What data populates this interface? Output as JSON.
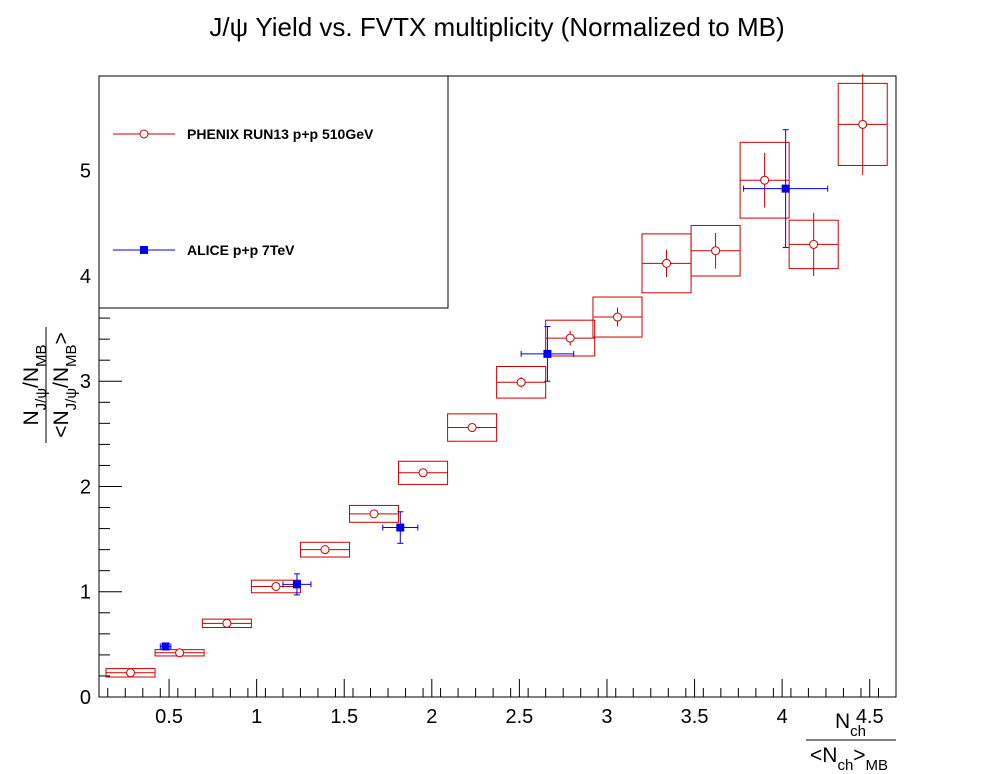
{
  "chart_data": {
    "type": "scatter",
    "title": "J/ψ Yield vs. FVTX multiplicity (Normalized to MB)",
    "x_axis": {
      "ticks": [
        0.5,
        1,
        1.5,
        2,
        2.5,
        3,
        3.5,
        4,
        4.5
      ],
      "tick_labels": [
        "0.5",
        "1",
        "1.5",
        "2",
        "2.5",
        "3",
        "3.5",
        "4",
        "4.5"
      ],
      "range": [
        0.1,
        4.65
      ],
      "label_num": "N",
      "label_num_sub": "ch",
      "label_den": "<N",
      "label_den_sub": "ch",
      "label_den_close": ">",
      "label_den_sub2": "MB"
    },
    "y_axis": {
      "ticks": [
        0,
        1,
        2,
        3,
        4,
        5
      ],
      "tick_labels": [
        "0",
        "1",
        "2",
        "3",
        "4",
        "5"
      ],
      "range": [
        0,
        5.9
      ],
      "label_num": "N",
      "label_num_sub": "J/ψ",
      "label_num_mid": "/N",
      "label_num_sub2": "MB",
      "label_den": "<N",
      "label_den_sub": "J/ψ",
      "label_den_mid": "/N",
      "label_den_sub2": "MB",
      "label_den_close": ">"
    },
    "legend": {
      "placement": "top-left",
      "entries": [
        {
          "label": "PHENIX RUN13 p+p 510GeV",
          "color": "#cc0000",
          "marker": "open-circle"
        },
        {
          "label": "ALICE p+p 7TeV",
          "color": "#0000ee",
          "marker": "filled-square"
        }
      ]
    },
    "series": [
      {
        "name": "PHENIX RUN13 p+p 510GeV",
        "color": "#cc0000",
        "marker": "open-circle",
        "points": [
          {
            "x": 0.28,
            "y": 0.23,
            "ex": 0.14,
            "ey": 0.02,
            "sx": 0.14,
            "sy": 0.04
          },
          {
            "x": 0.56,
            "y": 0.42,
            "ex": 0.14,
            "ey": 0.02,
            "sx": 0.14,
            "sy": 0.03
          },
          {
            "x": 0.83,
            "y": 0.7,
            "ex": 0.14,
            "ey": 0.02,
            "sx": 0.14,
            "sy": 0.04
          },
          {
            "x": 1.11,
            "y": 1.05,
            "ex": 0.14,
            "ey": 0.02,
            "sx": 0.14,
            "sy": 0.06
          },
          {
            "x": 1.39,
            "y": 1.4,
            "ex": 0.14,
            "ey": 0.02,
            "sx": 0.14,
            "sy": 0.07
          },
          {
            "x": 1.67,
            "y": 1.74,
            "ex": 0.14,
            "ey": 0.02,
            "sx": 0.14,
            "sy": 0.08
          },
          {
            "x": 1.95,
            "y": 2.13,
            "ex": 0.14,
            "ey": 0.02,
            "sx": 0.14,
            "sy": 0.11
          },
          {
            "x": 2.23,
            "y": 2.56,
            "ex": 0.14,
            "ey": 0.03,
            "sx": 0.14,
            "sy": 0.13
          },
          {
            "x": 2.51,
            "y": 2.99,
            "ex": 0.14,
            "ey": 0.05,
            "sx": 0.14,
            "sy": 0.15
          },
          {
            "x": 2.79,
            "y": 3.41,
            "ex": 0.14,
            "ey": 0.07,
            "sx": 0.14,
            "sy": 0.17
          },
          {
            "x": 3.06,
            "y": 3.61,
            "ex": 0.14,
            "ey": 0.09,
            "sx": 0.14,
            "sy": 0.19
          },
          {
            "x": 3.34,
            "y": 4.12,
            "ex": 0.14,
            "ey": 0.13,
            "sx": 0.14,
            "sy": 0.28
          },
          {
            "x": 3.62,
            "y": 4.24,
            "ex": 0.14,
            "ey": 0.17,
            "sx": 0.14,
            "sy": 0.24
          },
          {
            "x": 3.9,
            "y": 4.91,
            "ex": 0.14,
            "ey": 0.26,
            "sx": 0.14,
            "sy": 0.36
          },
          {
            "x": 4.18,
            "y": 4.3,
            "ex": 0.14,
            "ey": 0.3,
            "sx": 0.14,
            "sy": 0.23
          },
          {
            "x": 4.46,
            "y": 5.44,
            "ex": 0.14,
            "ey": 0.48,
            "sx": 0.14,
            "sy": 0.39
          }
        ]
      },
      {
        "name": "ALICE p+p 7TeV",
        "color": "#0000ee",
        "marker": "filled-square",
        "points": [
          {
            "x": 0.48,
            "y": 0.48,
            "ex": 0.03,
            "ey": 0.02
          },
          {
            "x": 1.23,
            "y": 1.07,
            "ex": 0.08,
            "ey": 0.1
          },
          {
            "x": 1.82,
            "y": 1.61,
            "ex": 0.1,
            "ey": 0.15
          },
          {
            "x": 2.66,
            "y": 3.26,
            "ex": 0.15,
            "ey": 0.26
          },
          {
            "x": 4.02,
            "y": 4.83,
            "ex": 0.24,
            "ey": 0.56
          }
        ]
      }
    ]
  }
}
